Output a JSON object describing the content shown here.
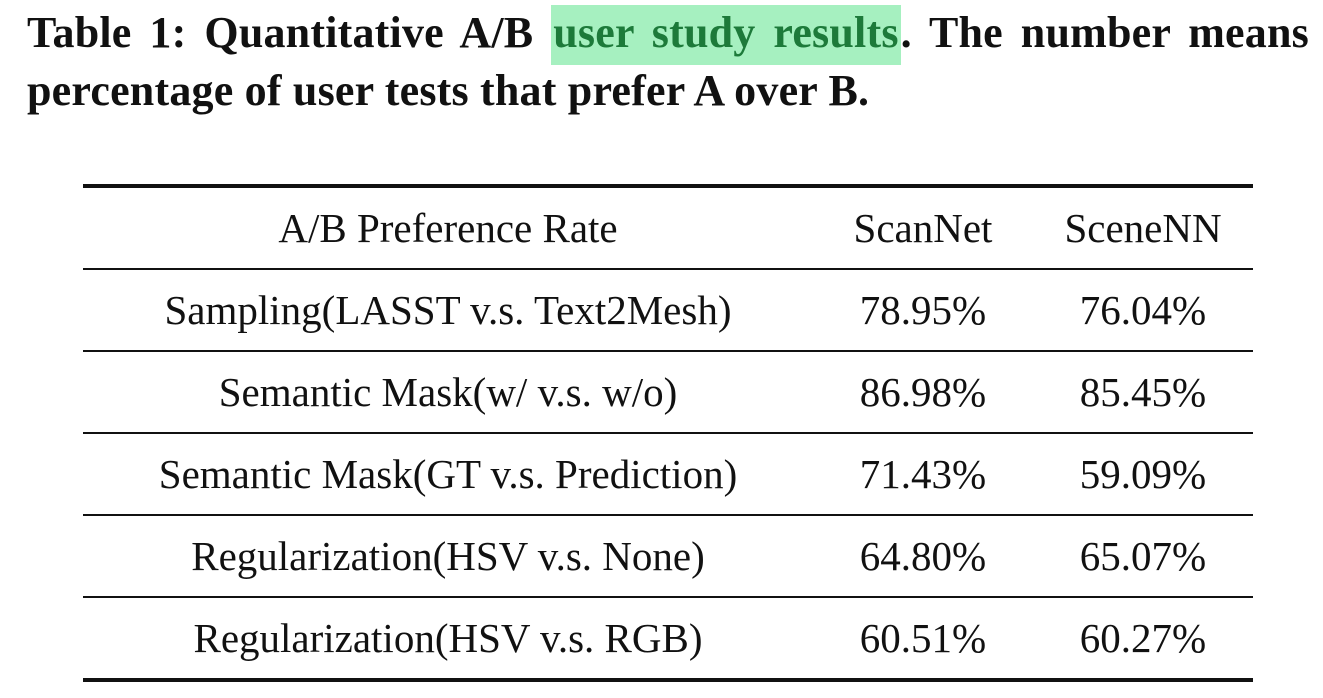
{
  "caption": {
    "label": "Table 1:",
    "text_before": "Quantitative A/B",
    "highlighted": "user study results",
    "text_after": ". The number means percentage of user tests that prefer A over B."
  },
  "table": {
    "headers": [
      "A/B Preference Rate",
      "ScanNet",
      "SceneNN"
    ],
    "rows": [
      [
        "Sampling(LASST v.s. Text2Mesh)",
        "78.95%",
        "76.04%"
      ],
      [
        "Semantic Mask(w/ v.s. w/o)",
        "86.98%",
        "85.45%"
      ],
      [
        "Semantic Mask(GT v.s. Prediction)",
        "71.43%",
        "59.09%"
      ],
      [
        "Regularization(HSV v.s. None)",
        "64.80%",
        "65.07%"
      ],
      [
        "Regularization(HSV v.s. RGB)",
        "60.51%",
        "60.27%"
      ]
    ]
  },
  "colors": {
    "highlight_background": "#a6f0c0",
    "highlight_text": "#1d7a3a"
  }
}
